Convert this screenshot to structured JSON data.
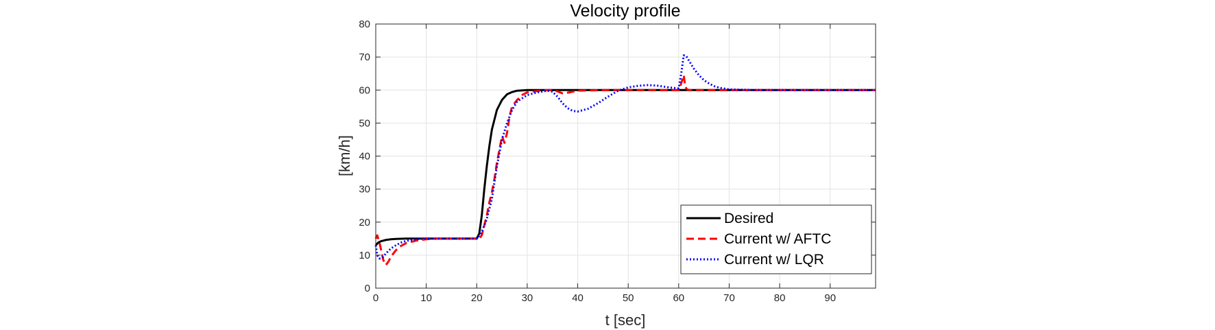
{
  "chart_data": {
    "type": "line",
    "title": "Velocity profile",
    "xlabel": "t [sec]",
    "ylabel": "[km/h]",
    "xlim": [
      0,
      99
    ],
    "ylim": [
      0,
      80
    ],
    "xticks": [
      0,
      10,
      20,
      30,
      40,
      50,
      60,
      70,
      80,
      90
    ],
    "yticks": [
      0,
      10,
      20,
      30,
      40,
      50,
      60,
      70,
      80
    ],
    "grid": true,
    "legend_position": "bottom-right",
    "series": [
      {
        "name": "Desired",
        "color": "#000000",
        "style": "solid",
        "x": [
          0,
          0.5,
          1,
          2,
          3,
          4,
          6,
          8,
          10,
          12,
          15,
          18,
          20,
          20.5,
          21,
          21.5,
          22,
          22.5,
          23,
          23.5,
          24,
          25,
          26,
          27,
          28,
          29,
          30,
          32,
          35,
          40,
          50,
          60,
          70,
          80,
          90,
          99
        ],
        "y": [
          13,
          13.8,
          14.2,
          14.6,
          14.8,
          14.9,
          15,
          15,
          15,
          15,
          15,
          15,
          15,
          16.5,
          22,
          30,
          37,
          43,
          48,
          51,
          54,
          57,
          58.7,
          59.4,
          59.8,
          59.9,
          60,
          60,
          60,
          60,
          60,
          60,
          60,
          60,
          60,
          60
        ]
      },
      {
        "name": "Current w/ AFTC",
        "color": "#ff0000",
        "style": "dashed",
        "x": [
          0,
          0.3,
          0.7,
          1,
          1.5,
          2,
          2.5,
          3,
          4,
          5,
          6,
          8,
          10,
          12,
          15,
          18,
          20,
          20.5,
          21,
          21.5,
          22,
          22.5,
          23,
          23.5,
          24,
          24.5,
          25,
          25.5,
          26,
          26.5,
          27,
          28,
          29,
          30,
          32,
          34,
          35,
          36,
          37,
          38,
          40,
          45,
          50,
          55,
          58,
          60,
          60.5,
          61,
          61.3,
          61.6,
          62,
          63,
          65,
          70,
          80,
          90,
          99
        ],
        "y": [
          15,
          16,
          14,
          12,
          8.5,
          7,
          8,
          9.5,
          11.5,
          12.8,
          13.6,
          14.4,
          14.8,
          15,
          15,
          15,
          15,
          15,
          16,
          19,
          22,
          26,
          29,
          33,
          38,
          42,
          46,
          44,
          47,
          52,
          55,
          57,
          58.5,
          59.3,
          59.7,
          60,
          60,
          59.6,
          59,
          59.2,
          59.8,
          60,
          60,
          60,
          60,
          60,
          62,
          64.5,
          61,
          60.3,
          60,
          60,
          60,
          60,
          60,
          60,
          60
        ]
      },
      {
        "name": "Current w/ LQR",
        "color": "#0000ff",
        "style": "dotted",
        "x": [
          0,
          0.3,
          0.7,
          1,
          1.5,
          2,
          3,
          4,
          5,
          6,
          8,
          10,
          12,
          15,
          18,
          20,
          21,
          22,
          23,
          24,
          25,
          26,
          27,
          28,
          30,
          32,
          34,
          35,
          36,
          37,
          38,
          39,
          40,
          42,
          44,
          46,
          48,
          50,
          52,
          54,
          56,
          58,
          60,
          60.5,
          61,
          61.5,
          62,
          63,
          64,
          65,
          66,
          67,
          68,
          70,
          75,
          80,
          90,
          99
        ],
        "y": [
          13,
          10,
          9,
          9,
          9.5,
          10.5,
          12,
          13,
          13.8,
          14.3,
          14.8,
          15,
          15,
          15,
          15,
          15,
          17,
          21,
          27,
          37,
          45,
          50,
          54,
          56.5,
          58.5,
          59.3,
          59.8,
          59.5,
          58,
          56,
          54.5,
          53.7,
          53.5,
          54.3,
          56,
          58,
          59.8,
          60.8,
          61.3,
          61.5,
          61.3,
          60.8,
          60.5,
          65,
          70.5,
          70.3,
          69,
          66.5,
          64.5,
          63,
          62,
          61.2,
          60.7,
          60.2,
          60,
          60,
          60,
          60
        ]
      }
    ]
  }
}
